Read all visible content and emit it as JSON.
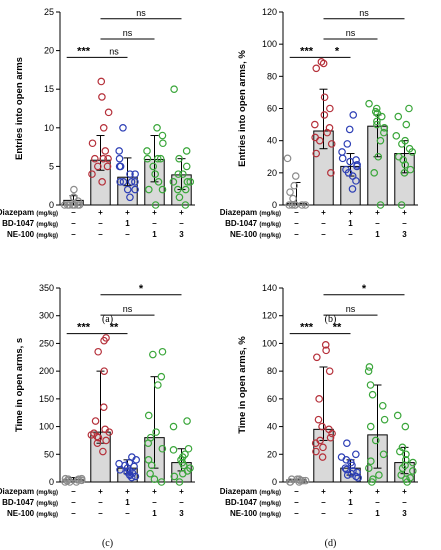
{
  "chart_data": [
    {
      "id": "a",
      "type": "bar",
      "caption": "(a)",
      "ylabel": "Entries into open arms",
      "ylim": [
        0,
        25
      ],
      "yticks": [
        0,
        5,
        10,
        15,
        20,
        25
      ],
      "groups": [
        "control",
        "diazepam",
        "diazepam+bd1047",
        "diazepam+ne100_1",
        "diazepam+ne100_3"
      ],
      "means": [
        0.6,
        5.8,
        3.6,
        5.9,
        3.9
      ],
      "errors": [
        [
          0,
          1.2
        ],
        [
          4.5,
          9.0
        ],
        [
          2.5,
          6.1
        ],
        [
          3.0,
          9.0
        ],
        [
          2.0,
          6.0
        ]
      ],
      "points": [
        [
          0,
          0,
          0,
          0,
          0,
          0,
          0.5,
          1,
          1,
          2,
          0
        ],
        [
          3,
          4,
          5,
          5,
          6,
          6,
          6,
          7,
          8,
          10,
          12,
          14,
          16
        ],
        [
          1,
          2,
          2,
          3,
          3,
          3,
          3,
          4,
          4,
          5,
          5,
          6,
          7,
          10
        ],
        [
          0,
          2,
          3,
          4,
          5,
          6,
          6,
          7,
          8,
          9,
          10,
          6,
          2
        ],
        [
          0,
          1,
          2,
          2,
          3,
          3,
          3,
          4,
          4,
          5,
          6,
          7,
          15
        ]
      ],
      "significance": [
        {
          "from": 0,
          "to": 1,
          "label": "***"
        },
        {
          "from": 1,
          "to": 2,
          "label": "ns"
        },
        {
          "from": 1,
          "to": 3,
          "label": "ns"
        },
        {
          "from": 1,
          "to": 4,
          "label": "ns"
        }
      ]
    },
    {
      "id": "b",
      "type": "bar",
      "caption": "(b)",
      "ylabel": "Entries into open arms, %",
      "ylim": [
        0,
        120
      ],
      "yticks": [
        0,
        20,
        40,
        60,
        80,
        100,
        120
      ],
      "groups": [
        "control",
        "diazepam",
        "diazepam+bd1047",
        "diazepam+ne100_1",
        "diazepam+ne100_3"
      ],
      "means": [
        1.0,
        46.0,
        24.0,
        49.0,
        32.0
      ],
      "errors": [
        [
          0,
          14
        ],
        [
          35,
          72
        ],
        [
          18,
          32
        ],
        [
          30,
          56
        ],
        [
          20,
          40
        ]
      ],
      "points": [
        [
          0,
          0,
          0,
          0,
          0,
          0,
          4,
          8,
          12,
          18,
          29
        ],
        [
          20,
          32,
          38,
          40,
          42,
          45,
          48,
          50,
          56,
          60,
          67,
          85,
          89,
          88
        ],
        [
          10,
          15,
          18,
          20,
          22,
          24,
          25,
          27,
          29,
          33,
          38,
          47,
          56,
          28
        ],
        [
          0,
          20,
          30,
          40,
          45,
          48,
          50,
          52,
          55,
          57,
          58,
          60,
          63
        ],
        [
          0,
          20,
          22,
          25,
          28,
          30,
          33,
          35,
          38,
          40,
          43,
          50,
          55,
          60
        ]
      ],
      "significance": [
        {
          "from": 0,
          "to": 1,
          "label": "***"
        },
        {
          "from": 1,
          "to": 2,
          "label": "*"
        },
        {
          "from": 1,
          "to": 3,
          "label": "ns"
        },
        {
          "from": 1,
          "to": 4,
          "label": "ns"
        }
      ]
    },
    {
      "id": "c",
      "type": "bar",
      "caption": "(c)",
      "ylabel": "Time in open arms, s",
      "ylim": [
        0,
        350
      ],
      "yticks": [
        0,
        50,
        100,
        150,
        200,
        250,
        300,
        350
      ],
      "groups": [
        "control",
        "diazepam",
        "diazepam+bd1047",
        "diazepam+ne100_1",
        "diazepam+ne100_3"
      ],
      "means": [
        4,
        90,
        25,
        80,
        35
      ],
      "errors": [
        [
          0,
          8
        ],
        [
          70,
          200
        ],
        [
          15,
          40
        ],
        [
          25,
          190
        ],
        [
          20,
          60
        ]
      ],
      "points": [
        [
          0,
          0,
          0,
          2,
          3,
          4,
          5,
          5,
          6,
          6
        ],
        [
          55,
          70,
          75,
          80,
          82,
          85,
          88,
          90,
          95,
          110,
          135,
          200,
          235,
          255,
          260
        ],
        [
          8,
          10,
          12,
          14,
          16,
          18,
          20,
          22,
          25,
          28,
          30,
          33,
          35,
          40,
          45
        ],
        [
          0,
          5,
          15,
          30,
          40,
          60,
          70,
          80,
          90,
          120,
          175,
          190,
          230,
          235
        ],
        [
          0,
          10,
          15,
          20,
          25,
          30,
          35,
          40,
          45,
          50,
          58,
          60,
          100,
          110
        ]
      ],
      "significance": [
        {
          "from": 0,
          "to": 1,
          "label": "***"
        },
        {
          "from": 1,
          "to": 2,
          "label": "**"
        },
        {
          "from": 1,
          "to": 3,
          "label": "ns"
        },
        {
          "from": 1,
          "to": 4,
          "label": "*"
        }
      ]
    },
    {
      "id": "d",
      "type": "bar",
      "caption": "(d)",
      "ylabel": "Time in open arms, %",
      "ylim": [
        0,
        140
      ],
      "yticks": [
        0,
        20,
        40,
        60,
        80,
        100,
        120,
        140
      ],
      "groups": [
        "control",
        "diazepam",
        "diazepam+bd1047",
        "diazepam+ne100_1",
        "diazepam+ne100_3"
      ],
      "means": [
        1.5,
        38,
        10,
        34,
        14
      ],
      "errors": [
        [
          0,
          2
        ],
        [
          30,
          83
        ],
        [
          5,
          16
        ],
        [
          10,
          70
        ],
        [
          6,
          25
        ]
      ],
      "points": [
        [
          0,
          0,
          0,
          1,
          1,
          1,
          2,
          2,
          2
        ],
        [
          18,
          22,
          25,
          28,
          30,
          32,
          35,
          38,
          40,
          45,
          60,
          80,
          90,
          95,
          99
        ],
        [
          3,
          4,
          5,
          6,
          7,
          8,
          9,
          10,
          12,
          14,
          16,
          18,
          20,
          28
        ],
        [
          0,
          2,
          5,
          10,
          15,
          20,
          30,
          40,
          45,
          55,
          63,
          70,
          80,
          83
        ],
        [
          0,
          2,
          3,
          5,
          8,
          10,
          12,
          14,
          16,
          20,
          22,
          25,
          40,
          48
        ]
      ],
      "significance": [
        {
          "from": 0,
          "to": 1,
          "label": "***"
        },
        {
          "from": 1,
          "to": 2,
          "label": "**"
        },
        {
          "from": 1,
          "to": 3,
          "label": "ns"
        },
        {
          "from": 1,
          "to": 4,
          "label": "*"
        }
      ]
    }
  ],
  "treatment_table": {
    "rows": [
      {
        "label": "Diazepam",
        "unit": "(mg/kg)",
        "values": [
          "–",
          "+",
          "+",
          "+",
          "+"
        ]
      },
      {
        "label": "BD-1047",
        "unit": "(mg/kg)",
        "values": [
          "–",
          "–",
          "1",
          "–",
          "–"
        ]
      },
      {
        "label": "NE-100",
        "unit": "(mg/kg)",
        "values": [
          "–",
          "–",
          "–",
          "1",
          "3"
        ]
      }
    ]
  },
  "colors": {
    "control": "#8c8c8c",
    "diazepam": "#b5303a",
    "bd1047": "#2d3fb5",
    "ne100": "#3aa63a",
    "bar_fill": "#d9d9d9"
  }
}
